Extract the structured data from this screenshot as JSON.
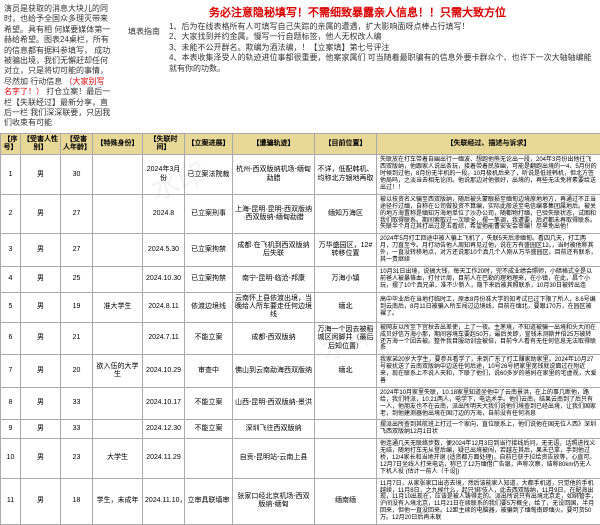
{
  "colors": {
    "header_bg": "#e8d898",
    "warn_text": "#d00000",
    "border": "#aaaaaa"
  },
  "left_panel": {
    "line1": "演员是获取的消息大块儿的同时，也给予全国众多理灭带来希望。具有相",
    "line2": "何媒要媒体第一赫给希望。图表24桌栏，所有的信息都有据料参填写，",
    "line3": "成功被骗出境，我们无懈赶却任何对立，只是将切可能的事情，尽然加",
    "line4_pre": "行动信息 ",
    "line4_red": "（大家别写名字了！）",
    "line4_post": " 打仓立案！最后一栏【失联经过】最新分享，直后一栏",
    "line5": "我们深深联要，只因我们收束有可能"
  },
  "header": {
    "warning": "务必注意隐秘填写！不需细致暴露亲人信息！！只需大致方位",
    "fill_label": "填表指南",
    "fill_items": [
      "1、后为在线表格所有人可填写自己失踪的亲属的遭遇，扩大影响面呀点棒占行填写！",
      "2、大家找到并约金属。慢写一行自题标签，他人无权改人编",
      "3、未能不公开群名。欺编为酒法编，！【立案填】第七号评注",
      "4、本表收集泽受人的轨迹进位事都很重要，他案家属们 可当随着最职骗有的信息外要卡群众个、也许下一次大轴轴编能就有你的功数。"
    ]
  },
  "columns": [
    "【序号】",
    "【受害人性别】",
    "【受害人年龄】",
    "【特殊身份】",
    "【失联时间】",
    "【立案进展】",
    "【遭骗轨迹】",
    "【目前位置】",
    "【失联经过、描述与诉求】"
  ],
  "rows": [
    {
      "seq": "1",
      "sex": "男",
      "age": "30",
      "id": "",
      "time": "2024年3月份",
      "stat": "已立案法院裁",
      "trk": "杭州-西双版纳机场-缅甸勐腊",
      "pos": "不详，低配韩机、均称北方银地再取",
      "desc": "失联放在打车带着自幽出行一缅波、想跑他熊无论出一段，204年3月份出他往飞西双版纳，他跟家人说出条玩，接着带着民族幽，可能是翻跑出境的一4、5月份的时候到过他，8月份无半机的一段，10月极机后来了，听说是低班韩机，但北方签他局吗，之淡当去相无论间。他说那边对他很好，出境的，再些无法免将素要给送出过！！"
    },
    {
      "seq": "2",
      "sex": "男",
      "age": "27",
      "id": "",
      "time": "2024.8",
      "stat": "已立案刑事",
      "trk": "上海-昆明·昆明-西双版纳·西双版纳-缅甸勐腊",
      "pos": "缅知万海区",
      "desc": "被以技资名义骗至西双版纳，随后被头蒙眼损至缅甸边境原地地方，再通过不正当途径拧过缅，自称在公司做投资不算编，实际此般送至电信编事集团属地后。被关的地方海置称是缅知万海地单位了沙办公司，随都物打缅，已验失联状态，试图和我们取得联系。期间索取过一次联全，摆一笔调，我遭要，后迟都未再取得联系。失联半个月过其打出过是五看综，希望他能曹安安会审编！尽早免出他！"
    },
    {
      "seq": "3",
      "sex": "男",
      "age": "27",
      "id": "",
      "time": "2024.5.30",
      "stat": "已立案拘禁",
      "trk": "成都·在飞机到西双版纳后失联",
      "pos": "万华盛园区，12# 转移位置",
      "desc": "2024年5月打工回途中被人骗上飞机了，失联5天后渗缅甸。看四几天，打工两月，刀直至今。月打动告他人周知再见过他，说在万有盛园区12。，当时被他称其外，一直没转移地点，对方还说那10个真几个人刚从万华盛园区。目前还有联系，其一责继续"
    },
    {
      "seq": "4",
      "sex": "男",
      "age": "25",
      "id": "",
      "time": "2024.10.30",
      "stat": "已立案拘禁",
      "trk": "南宁-昆明-临沧-邦康",
      "pos": "万海小镇",
      "desc": "10月31日出境，说搞大钱，每天工作20时，完不成业绩会照师，小暗格式全是以前爸人被暴恪血，打付计周，目前人在巴勒的理地理来，在小镇，在此，昌个小玩，摆了10个真兄弟，准不少新人，隐下来后被其照联系，10月30日被转出连"
    },
    {
      "seq": "5",
      "sex": "男",
      "age": "19",
      "id": "准大学生",
      "time": "2024.8.11",
      "stat": "依渡边境线",
      "trk": "云南怀上县依渡出境，当晚给人所车要走任何边境线",
      "pos": "缅北",
      "desc": "高中毕业后在当地打临时工，原本8月份准大学的知考试已过下限了所人，8.6号编到云南后，8月11日被骗入所车闯过边境线，目前在缅北，要跟170万，在园区被裸了。"
    },
    {
      "seq": "6",
      "sex": "男",
      "age": "21",
      "id": "",
      "time": "2024.7.11",
      "stat": "不能立案",
      "trk": "成都-西双版纳",
      "pos": "万海一个因去被稻城区闲脚并（最后后知位置）",
      "desc": "被网友以所至下宫秋去出差使，上了一夜。主茅境，不知道被骗一出境和头大间在成贝好信万海小那，期间容境车要赳50万，最后关即，宣钱未测斯并倍25万被转还万海一个因去被。整件我目服动训金被倍，目前今人看有无任何信息无法取得联系"
    },
    {
      "seq": "7",
      "sex": "男",
      "age": "20",
      "id": "欲入伍的大学生",
      "time": "2024.10.29",
      "stat": "审查中",
      "trk": "佛山到云南勐海西双版纳",
      "pos": "缅北",
      "desc": "我家弟20岁大学生，要参兵看学了，来到广东了打工赚家助家里。2024年10月27号被扰送了云南双版纳中边送任何后途，10号26号把家里宽钱就说面过在附近来，现在联系上不说人天和，下联了他们，说60多岁的爸妈在家里的宅虚视，大爱善"
    },
    {
      "seq": "8",
      "sex": "男",
      "age": "33",
      "id": "",
      "time": "2024.10.17",
      "stat": "不能立案",
      "trk": "山西-昆明-西双版纳-景洪",
      "pos": "",
      "desc": "2024年10月家里失联，10.18家里知道坐他中了云南景洪，在上的事几断他，路给，我们特派，10.21两人，电学下，电话术手。他们云南，结果云南到了后只有一人，他朋友也不在云南，派出所明天大我们说他们境查到已经出境，让我们国家老，到他建测器他出境在国汀边的万海，自前没有任何消息"
    },
    {
      "seq": "9",
      "sex": "男",
      "age": "33",
      "id": "",
      "time": "2024.12.30",
      "stat": "不能立案",
      "trk": "深圳飞往西双版纳",
      "pos": "",
      "desc": "摆派出所查到其航班上打过一个家向，直位联系上，他们说他在国无位人西》深圳飞西双版纳12月1日状"
    },
    {
      "seq": "10",
      "sex": "男",
      "age": "23",
      "id": "大学生",
      "time": "2024.11.29",
      "stat": "",
      "trk": "自贡-昆明站-云南上县",
      "pos": "",
      "desc": "他连通几天无联络步数，便2024年12月3日到当行接线后问，无无语，话照进找义无结，随地打车无从登后编，疑已出境被闯，若越左其后，果未已拿，手到他过桥，12/4家长和当地开谢 (适资都方面处理)，自前已获于拉给资告放等，心直可。12月7日坐线人打来电话，称已了12万缅借广告银，声称次察，结称80km仍无人下机人役 (估计一前人（千设])"
    },
    {
      "seq": "11",
      "sex": "男",
      "age": "18",
      "id": "学生，未成年",
      "time": "2024.11.10，",
      "stat": "立审具联填审",
      "trk": "张家口经北京机场-西双版纳-缅甸",
      "pos": "缅南缅",
      "desc": "11月7日，从家张家口出态去境，然后该能家人知道，大都手机道，只觉他的手机越续，11月8日，之九候什么，起只'绑'伎人，此去西双版纳，11月9日，在配海出现，11月10出现在，应该是被人铸得走的。派出所说只有出境北京走，如绑管手，沪间没有入境北京，11月21日在续联系的我们要5万概全，给了，无设回国，半月回来，但他一直没回来。12距主续的电脑器，被骗到了缅甸南即缅火。要可货50万。12月20日后再未联"
    }
  ]
}
